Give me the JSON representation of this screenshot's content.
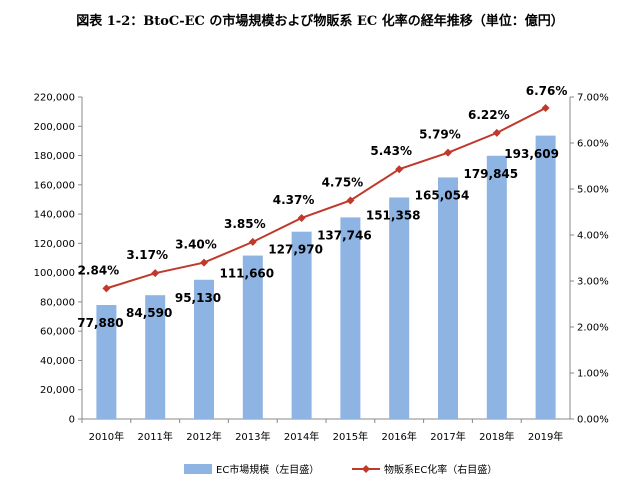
{
  "title": "図表 1-2：BtoC-EC の市場規模および物販系 EC 化率の経年推移（単位：億円）",
  "chart_data": {
    "type": "bar",
    "categories": [
      "2010年",
      "2011年",
      "2012年",
      "2013年",
      "2014年",
      "2015年",
      "2016年",
      "2017年",
      "2018年",
      "2019年"
    ],
    "series": [
      {
        "name": "EC市場規模（左目盛）",
        "type": "bar",
        "axis": "left",
        "values": [
          77880,
          84590,
          95130,
          111660,
          127970,
          137746,
          151358,
          165054,
          179845,
          193609
        ],
        "labels": [
          "77,880",
          "84,590",
          "95,130",
          "111,660",
          "127,970",
          "137,746",
          "151,358",
          "165,054",
          "179,845",
          "193,609"
        ]
      },
      {
        "name": "物販系EC化率（右目盛）",
        "type": "line",
        "axis": "right",
        "values": [
          2.84,
          3.17,
          3.4,
          3.85,
          4.37,
          4.75,
          5.43,
          5.79,
          6.22,
          6.76
        ],
        "labels": [
          "2.84%",
          "3.17%",
          "3.40%",
          "3.85%",
          "4.37%",
          "4.75%",
          "5.43%",
          "5.79%",
          "6.22%",
          "6.76%"
        ]
      }
    ],
    "y_left": {
      "ylim": [
        0,
        220000
      ],
      "ticks": [
        "0",
        "20,000",
        "40,000",
        "60,000",
        "80,000",
        "100,000",
        "120,000",
        "140,000",
        "160,000",
        "180,000",
        "200,000",
        "220,000"
      ]
    },
    "y_right": {
      "ylim": [
        0,
        7
      ],
      "ticks": [
        "0.00%",
        "1.00%",
        "2.00%",
        "3.00%",
        "4.00%",
        "5.00%",
        "6.00%",
        "7.00%"
      ]
    },
    "legend_position": "bottom",
    "colors": {
      "bar": "#8eb4e3",
      "line": "#c0392b",
      "highlight_bar_label": "#1f2a6b",
      "highlight_rate_label": "#d00000"
    }
  }
}
